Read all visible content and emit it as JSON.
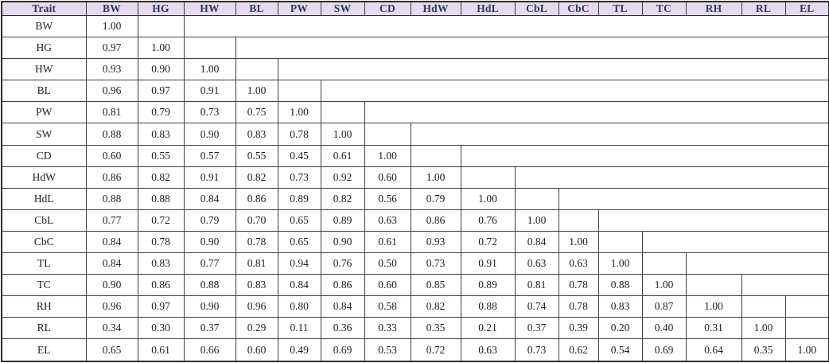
{
  "palette": {
    "header_bg": "#e4dbee",
    "header_text": "#2e3a5a",
    "body_text": "#1f1f1f",
    "border": "#3f3f3f",
    "page_bg": "#ffffff"
  },
  "table": {
    "columns": [
      "Trait",
      "BW",
      "HG",
      "HW",
      "BL",
      "PW",
      "SW",
      "CD",
      "HdW",
      "HdL",
      "CbL",
      "CbC",
      "TL",
      "TC",
      "RH",
      "RL",
      "EL"
    ],
    "rows": [
      {
        "trait": "BW",
        "values": [
          "1.00"
        ]
      },
      {
        "trait": "HG",
        "values": [
          "0.97",
          "1.00"
        ]
      },
      {
        "trait": "HW",
        "values": [
          "0.93",
          "0.90",
          "1.00"
        ]
      },
      {
        "trait": "BL",
        "values": [
          "0.96",
          "0.97",
          "0.91",
          "1.00"
        ]
      },
      {
        "trait": "PW",
        "values": [
          "0.81",
          "0.79",
          "0.73",
          "0.75",
          "1.00"
        ]
      },
      {
        "trait": "SW",
        "values": [
          "0.88",
          "0.83",
          "0.90",
          "0.83",
          "0.78",
          "1.00"
        ]
      },
      {
        "trait": "CD",
        "values": [
          "0.60",
          "0.55",
          "0.57",
          "0.55",
          "0.45",
          "0.61",
          "1.00"
        ]
      },
      {
        "trait": "HdW",
        "values": [
          "0.86",
          "0.82",
          "0.91",
          "0.82",
          "0.73",
          "0.92",
          "0.60",
          "1.00"
        ]
      },
      {
        "trait": "HdL",
        "values": [
          "0.88",
          "0.88",
          "0.84",
          "0.86",
          "0.89",
          "0.82",
          "0.56",
          "0.79",
          "1.00"
        ]
      },
      {
        "trait": "CbL",
        "values": [
          "0.77",
          "0.72",
          "0.79",
          "0.70",
          "0.65",
          "0.89",
          "0.63",
          "0.86",
          "0.76",
          "1.00"
        ]
      },
      {
        "trait": "CbC",
        "values": [
          "0.84",
          "0.78",
          "0.90",
          "0.78",
          "0.65",
          "0.90",
          "0.61",
          "0.93",
          "0.72",
          "0.84",
          "1.00"
        ]
      },
      {
        "trait": "TL",
        "values": [
          "0.84",
          "0.83",
          "0.77",
          "0.81",
          "0.94",
          "0.76",
          "0.50",
          "0.73",
          "0.91",
          "0.63",
          "0.63",
          "1.00"
        ]
      },
      {
        "trait": "TC",
        "values": [
          "0.90",
          "0.86",
          "0.88",
          "0.83",
          "0.84",
          "0.86",
          "0.60",
          "0.85",
          "0.89",
          "0.81",
          "0.78",
          "0.88",
          "1.00"
        ]
      },
      {
        "trait": "RH",
        "values": [
          "0.96",
          "0.97",
          "0.90",
          "0.96",
          "0.80",
          "0.84",
          "0.58",
          "0.82",
          "0.88",
          "0.74",
          "0.78",
          "0.83",
          "0.87",
          "1.00"
        ]
      },
      {
        "trait": "RL",
        "values": [
          "0.34",
          "0.30",
          "0.37",
          "0.29",
          "0.11",
          "0.36",
          "0.33",
          "0.35",
          "0.21",
          "0.37",
          "0.39",
          "0.20",
          "0.40",
          "0.31",
          "1.00"
        ]
      },
      {
        "trait": "EL",
        "values": [
          "0.65",
          "0.61",
          "0.66",
          "0.60",
          "0.49",
          "0.69",
          "0.53",
          "0.72",
          "0.63",
          "0.73",
          "0.62",
          "0.54",
          "0.69",
          "0.64",
          "0.35",
          "1.00"
        ]
      }
    ]
  }
}
